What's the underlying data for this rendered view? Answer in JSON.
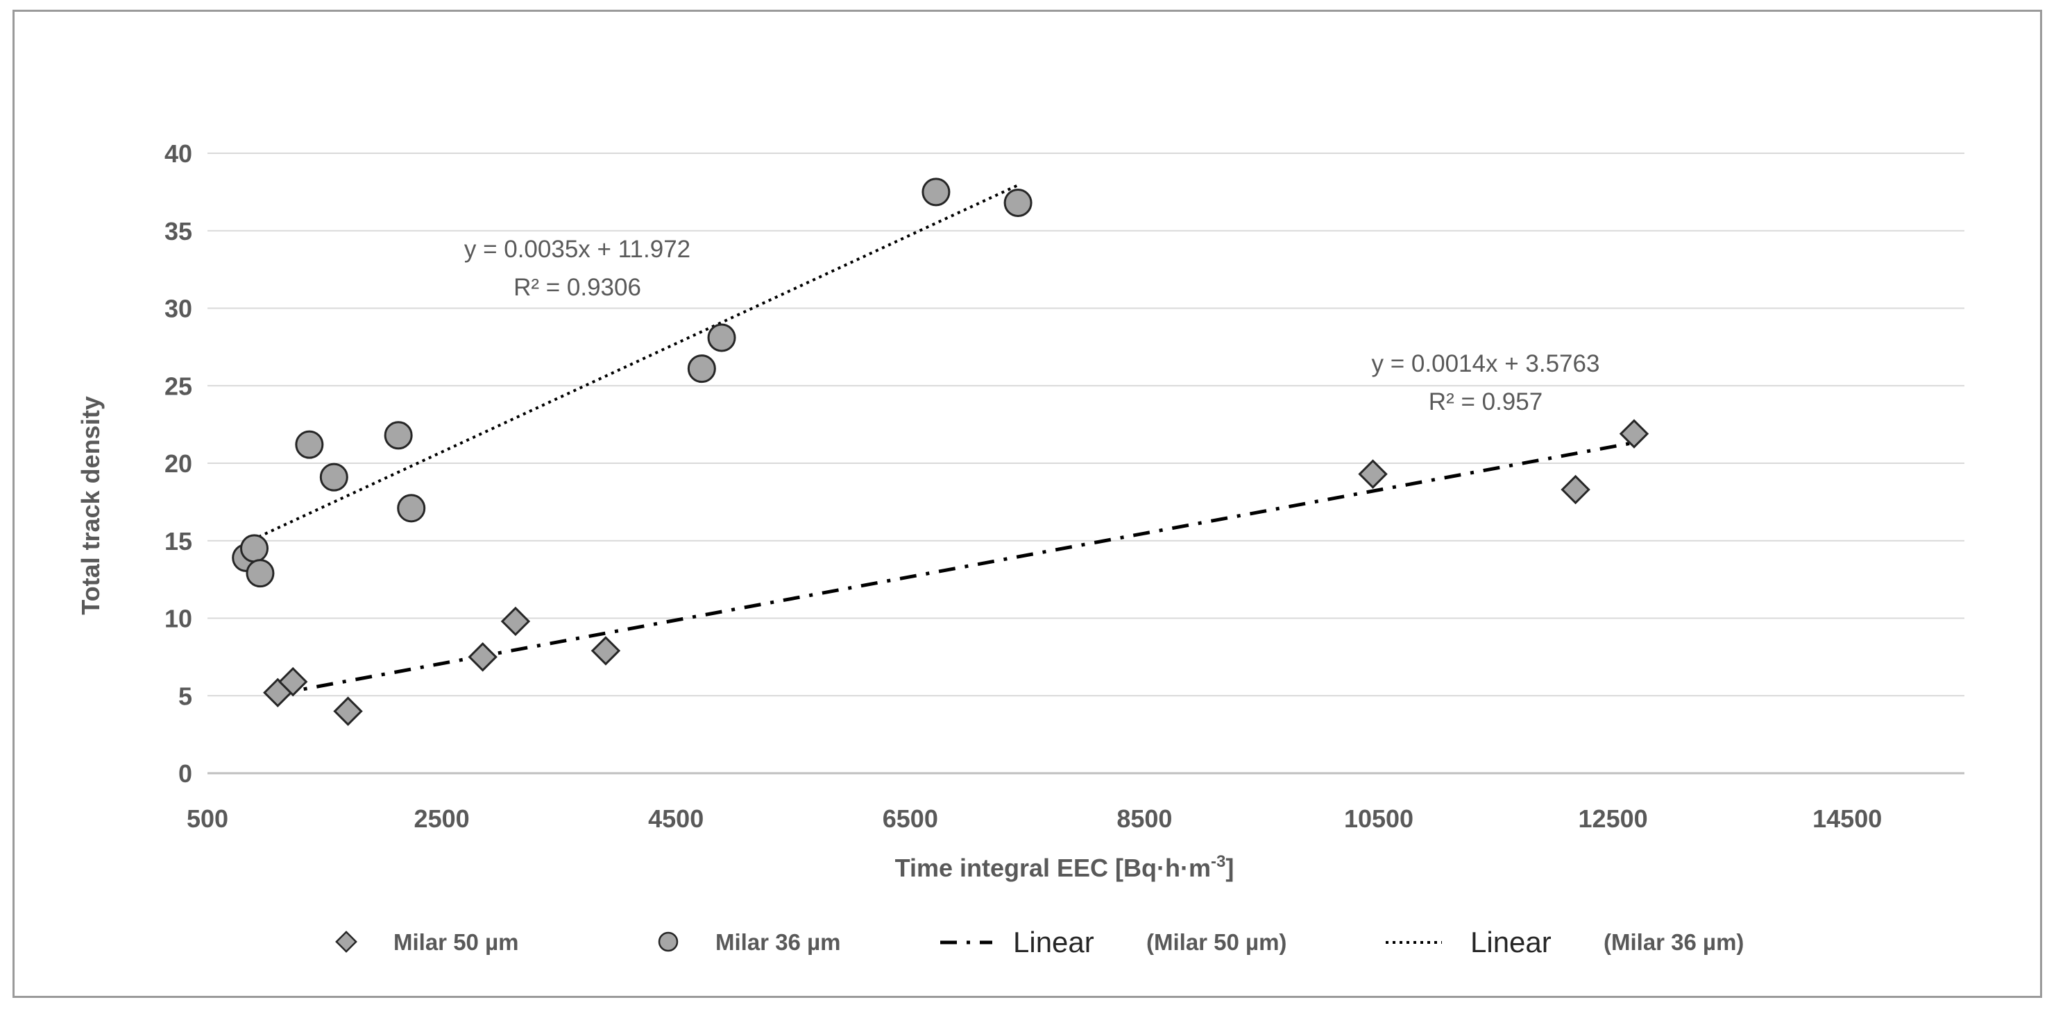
{
  "chart_data": {
    "type": "scatter",
    "title": "",
    "xlabel": "Time integral EEC [Bq·h·m",
    "xlabel_sup": "-3",
    "xlabel_end": "]",
    "ylabel": "Total track density",
    "xlim": [
      500,
      15500
    ],
    "ylim": [
      0,
      40
    ],
    "grid": true,
    "x_ticks": [
      "500",
      "2500",
      "4500",
      "6500",
      "8500",
      "10500",
      "12500",
      "14500"
    ],
    "y_ticks": [
      "0",
      "5",
      "10",
      "15",
      "20",
      "25",
      "30",
      "35",
      "40"
    ],
    "series": [
      {
        "name": "Milar 50 µm",
        "marker": "diamond",
        "color": "#a6a6a6",
        "x": [
          1100,
          1230,
          1700,
          2850,
          3130,
          3900,
          10450,
          12180,
          12680
        ],
        "y": [
          5.2,
          5.9,
          4.0,
          7.5,
          9.8,
          7.9,
          19.3,
          18.3,
          21.9
        ]
      },
      {
        "name": "Milar 36 µm",
        "marker": "circle",
        "color": "#a6a6a6",
        "x": [
          830,
          900,
          950,
          1370,
          1580,
          2130,
          2240,
          4720,
          4890,
          6720,
          7420
        ],
        "y": [
          13.9,
          14.5,
          12.9,
          21.2,
          19.1,
          21.8,
          17.1,
          26.1,
          28.1,
          37.5,
          36.8
        ]
      }
    ],
    "trendlines": [
      {
        "series": "Milar 50 µm",
        "style": "dash-dot",
        "slope": 0.0014,
        "intercept": 3.5763,
        "x_range": [
          1100,
          12680
        ],
        "equation": "y = 0.0014x + 3.5763",
        "r2": "R² = 0.957"
      },
      {
        "series": "Milar 36 µm",
        "style": "dotted",
        "slope": 0.0035,
        "intercept": 11.972,
        "x_range": [
          830,
          7420
        ],
        "equation": "y = 0.0035x + 11.972",
        "r2": "R² = 0.9306"
      }
    ],
    "legend": {
      "position": "bottom",
      "items": [
        {
          "label": "Milar 50 µm",
          "kind": "diamond"
        },
        {
          "label": "Milar 36 µm",
          "kind": "circle"
        },
        {
          "prefix": "Linear",
          "label": "(Milar 50 µm)",
          "kind": "dash-dot"
        },
        {
          "prefix": "Linear",
          "label": "(Milar 36 µm)",
          "kind": "dotted"
        }
      ]
    }
  }
}
